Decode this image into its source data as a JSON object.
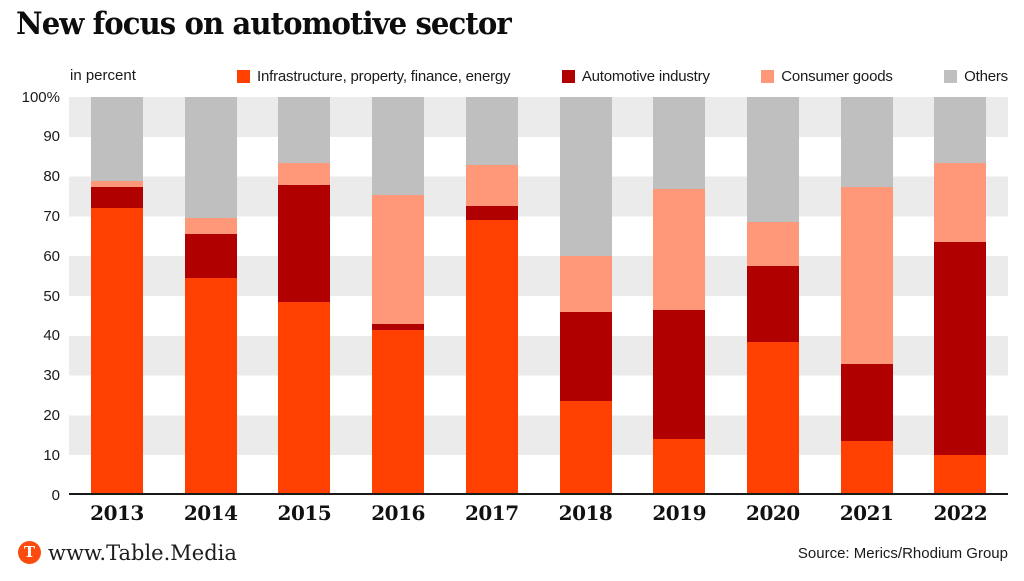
{
  "title": "New focus on automotive sector",
  "axis_note": "in percent",
  "colors": {
    "infrastructure": "#ff4000",
    "automotive": "#b10000",
    "consumer_goods": "#fe9878",
    "others": "#bfbfbf",
    "stripe": "#ebebeb",
    "axis": "#1a1a1a",
    "brand_orange": "#fb4b0e"
  },
  "chart_data": {
    "type": "bar",
    "stacked": true,
    "title": "New focus on automotive sector",
    "ylabel": "in percent",
    "ylim": [
      0,
      100
    ],
    "grid": "alternating horizontal stripes every 10%",
    "legend_position": "top",
    "categories": [
      "2013",
      "2014",
      "2015",
      "2016",
      "2017",
      "2018",
      "2019",
      "2020",
      "2021",
      "2022"
    ],
    "series": [
      {
        "name": "Infrastructure, property, finance, energy",
        "color": "#ff4000",
        "values": [
          72,
          54.5,
          48.5,
          41.5,
          69,
          23.5,
          14,
          38.5,
          13.5,
          10
        ]
      },
      {
        "name": "Automotive industry",
        "color": "#b10000",
        "values": [
          5.5,
          11,
          29.5,
          1.5,
          3.5,
          22.5,
          32.5,
          19,
          19.5,
          53.5
        ]
      },
      {
        "name": "Consumer goods",
        "color": "#fe9878",
        "values": [
          1.5,
          4,
          5.5,
          32.5,
          10.5,
          14,
          30.5,
          11,
          44.5,
          20
        ]
      },
      {
        "name": "Others",
        "color": "#bfbfbf",
        "values": [
          21,
          30.5,
          16.5,
          24.5,
          17,
          40,
          23,
          31.5,
          22.5,
          16.5
        ]
      }
    ],
    "yticks": [
      {
        "label": "100%",
        "value": 100
      },
      {
        "label": "90",
        "value": 90
      },
      {
        "label": "80",
        "value": 80
      },
      {
        "label": "70",
        "value": 70
      },
      {
        "label": "60",
        "value": 60
      },
      {
        "label": "50",
        "value": 50
      },
      {
        "label": "40",
        "value": 40
      },
      {
        "label": "30",
        "value": 30
      },
      {
        "label": "20",
        "value": 20
      },
      {
        "label": "10",
        "value": 10
      },
      {
        "label": "0",
        "value": 0
      }
    ]
  },
  "footer": {
    "logo_letter": "T",
    "site": "www.Table.Media",
    "source": "Source: Merics/Rhodium Group"
  }
}
